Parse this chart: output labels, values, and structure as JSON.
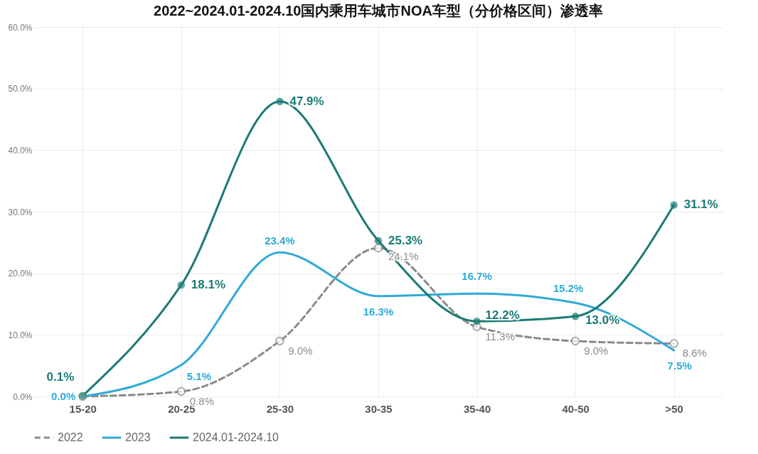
{
  "chart_data": {
    "type": "line",
    "title": "2022~2024.01-2024.10国内乘用车城市NOA车型（分价格区间）渗透率",
    "categories": [
      "15-20",
      "20-25",
      "25-30",
      "30-35",
      "35-40",
      "40-50",
      ">50"
    ],
    "ylim": [
      0,
      60
    ],
    "yticks": [
      {
        "value": 0,
        "label": "0.0%"
      },
      {
        "value": 10,
        "label": "10.0%"
      },
      {
        "value": 20,
        "label": "20.0%"
      },
      {
        "value": 30,
        "label": "30.0%"
      },
      {
        "value": 40,
        "label": "40.0%"
      },
      {
        "value": 50,
        "label": "50.0%"
      },
      {
        "value": 60,
        "label": "60.0%"
      }
    ],
    "grid": true,
    "legend": "bottom",
    "series": [
      {
        "name": "2022",
        "color": "#8a8a8a",
        "line_style": "dashed",
        "marker": "circle",
        "values": [
          0.0,
          0.8,
          9.0,
          24.1,
          11.3,
          9.0,
          8.6
        ],
        "value_labels": [
          null,
          "0.8%",
          "9.0%",
          "24.1%",
          "11.3%",
          "9.0%",
          "8.6%"
        ]
      },
      {
        "name": "2023",
        "color": "#2eaad6",
        "line_style": "solid",
        "marker": "none",
        "values": [
          0.0,
          5.1,
          23.4,
          16.3,
          16.7,
          15.2,
          7.5
        ],
        "value_labels": [
          "0.0%",
          "5.1%",
          "23.4%",
          "16.3%",
          "16.7%",
          "15.2%",
          "7.5%"
        ]
      },
      {
        "name": "2024.01-2024.10",
        "color": "#1a7a74",
        "line_style": "solid",
        "marker": "circle",
        "values": [
          0.1,
          18.1,
          47.9,
          25.3,
          12.2,
          13.0,
          31.1
        ],
        "value_labels": [
          "0.1%",
          "18.1%",
          "47.9%",
          "25.3%",
          "12.2%",
          "13.0%",
          "31.1%"
        ]
      }
    ]
  }
}
